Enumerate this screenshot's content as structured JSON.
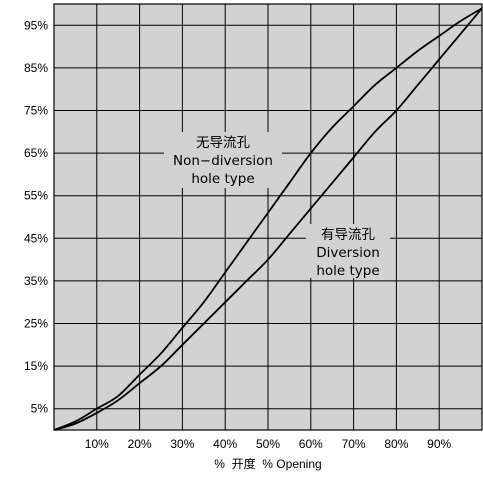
{
  "chart_data": {
    "type": "line",
    "xlabel": "%  开度  % Opening",
    "xlim": [
      0,
      100
    ],
    "ylim": [
      0,
      100
    ],
    "x_ticks": [
      {
        "value": 10,
        "label": "10%"
      },
      {
        "value": 20,
        "label": "20%"
      },
      {
        "value": 30,
        "label": "30%"
      },
      {
        "value": 40,
        "label": "40%"
      },
      {
        "value": 50,
        "label": "50%"
      },
      {
        "value": 60,
        "label": "60%"
      },
      {
        "value": 70,
        "label": "70%"
      },
      {
        "value": 80,
        "label": "80%"
      },
      {
        "value": 90,
        "label": "90%"
      }
    ],
    "y_ticks": [
      {
        "value": 5,
        "label": "5%"
      },
      {
        "value": 15,
        "label": "15%"
      },
      {
        "value": 25,
        "label": "25%"
      },
      {
        "value": 35,
        "label": "35%"
      },
      {
        "value": 45,
        "label": "45%"
      },
      {
        "value": 55,
        "label": "55%"
      },
      {
        "value": 65,
        "label": "65%"
      },
      {
        "value": 75,
        "label": "75%"
      },
      {
        "value": 85,
        "label": "85%"
      },
      {
        "value": 95,
        "label": "95%"
      }
    ],
    "grid": true,
    "background_color": "#d2d2d2",
    "line_color": "#000000",
    "series": [
      {
        "key": "non_diversion",
        "x": [
          0,
          5,
          10,
          15,
          20,
          25,
          30,
          35,
          40,
          45,
          50,
          55,
          60,
          65,
          70,
          75,
          80,
          85,
          90,
          95,
          100
        ],
        "y": [
          0,
          2,
          5,
          8,
          13,
          18,
          24,
          30,
          37,
          44,
          51,
          58,
          65,
          71,
          76,
          81,
          85,
          89,
          92.5,
          96,
          99
        ]
      },
      {
        "key": "diversion",
        "x": [
          0,
          5,
          10,
          15,
          20,
          25,
          30,
          35,
          40,
          45,
          50,
          55,
          60,
          65,
          70,
          75,
          80,
          85,
          90,
          95,
          100
        ],
        "y": [
          0,
          1.5,
          4,
          7,
          11,
          15,
          20,
          25,
          30,
          35,
          40,
          46,
          52,
          58,
          64,
          70,
          75,
          81,
          87,
          93,
          99
        ]
      }
    ],
    "annotations": [
      {
        "key": "non_diversion_label",
        "lines": [
          "无导流孔",
          "Non−diversion",
          "hole type"
        ]
      },
      {
        "key": "diversion_label",
        "lines": [
          "有导流孔",
          "Diversion",
          "hole type"
        ]
      }
    ]
  }
}
